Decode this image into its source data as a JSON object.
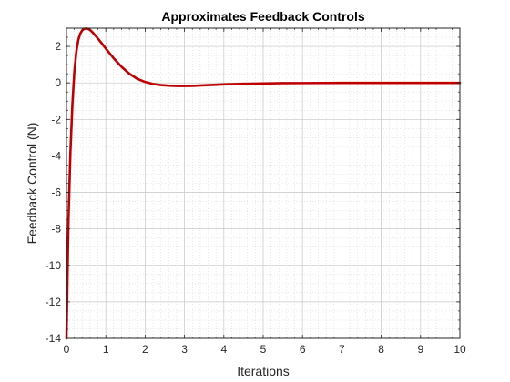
{
  "chart_data": {
    "type": "line",
    "title": "Approximates Feedback Controls",
    "xlabel": "Iterations",
    "ylabel": "Feedback Control (N)",
    "xlim": [
      0,
      10
    ],
    "ylim": [
      -14,
      3
    ],
    "xticks": [
      0,
      1,
      2,
      3,
      4,
      5,
      6,
      7,
      8,
      9,
      10
    ],
    "yticks": [
      -14,
      -12,
      -10,
      -8,
      -6,
      -4,
      -2,
      0,
      2
    ],
    "grid": true,
    "minor_grid": true,
    "series": [
      {
        "color": "#C00000",
        "x": [
          0.0,
          0.05,
          0.1,
          0.15,
          0.2,
          0.25,
          0.3,
          0.35,
          0.4,
          0.45,
          0.5,
          0.55,
          0.6,
          0.65,
          0.7,
          0.8,
          0.9,
          1.0,
          1.2,
          1.4,
          1.6,
          1.8,
          2.0,
          2.2,
          2.4,
          2.6,
          2.8,
          3.0,
          3.2,
          3.5,
          4.0,
          4.5,
          5.0,
          5.5,
          6.0,
          7.0,
          8.0,
          9.0,
          10.0
        ],
        "y": [
          -14.0,
          -7.6,
          -3.8,
          -1.2,
          0.6,
          1.7,
          2.35,
          2.7,
          2.88,
          2.96,
          2.98,
          2.96,
          2.9,
          2.8,
          2.68,
          2.43,
          2.16,
          1.88,
          1.35,
          0.88,
          0.5,
          0.22,
          0.05,
          -0.06,
          -0.12,
          -0.15,
          -0.17,
          -0.17,
          -0.16,
          -0.13,
          -0.08,
          -0.05,
          -0.03,
          -0.015,
          -0.01,
          0.0,
          0.0,
          0.0,
          0.0
        ]
      }
    ]
  }
}
